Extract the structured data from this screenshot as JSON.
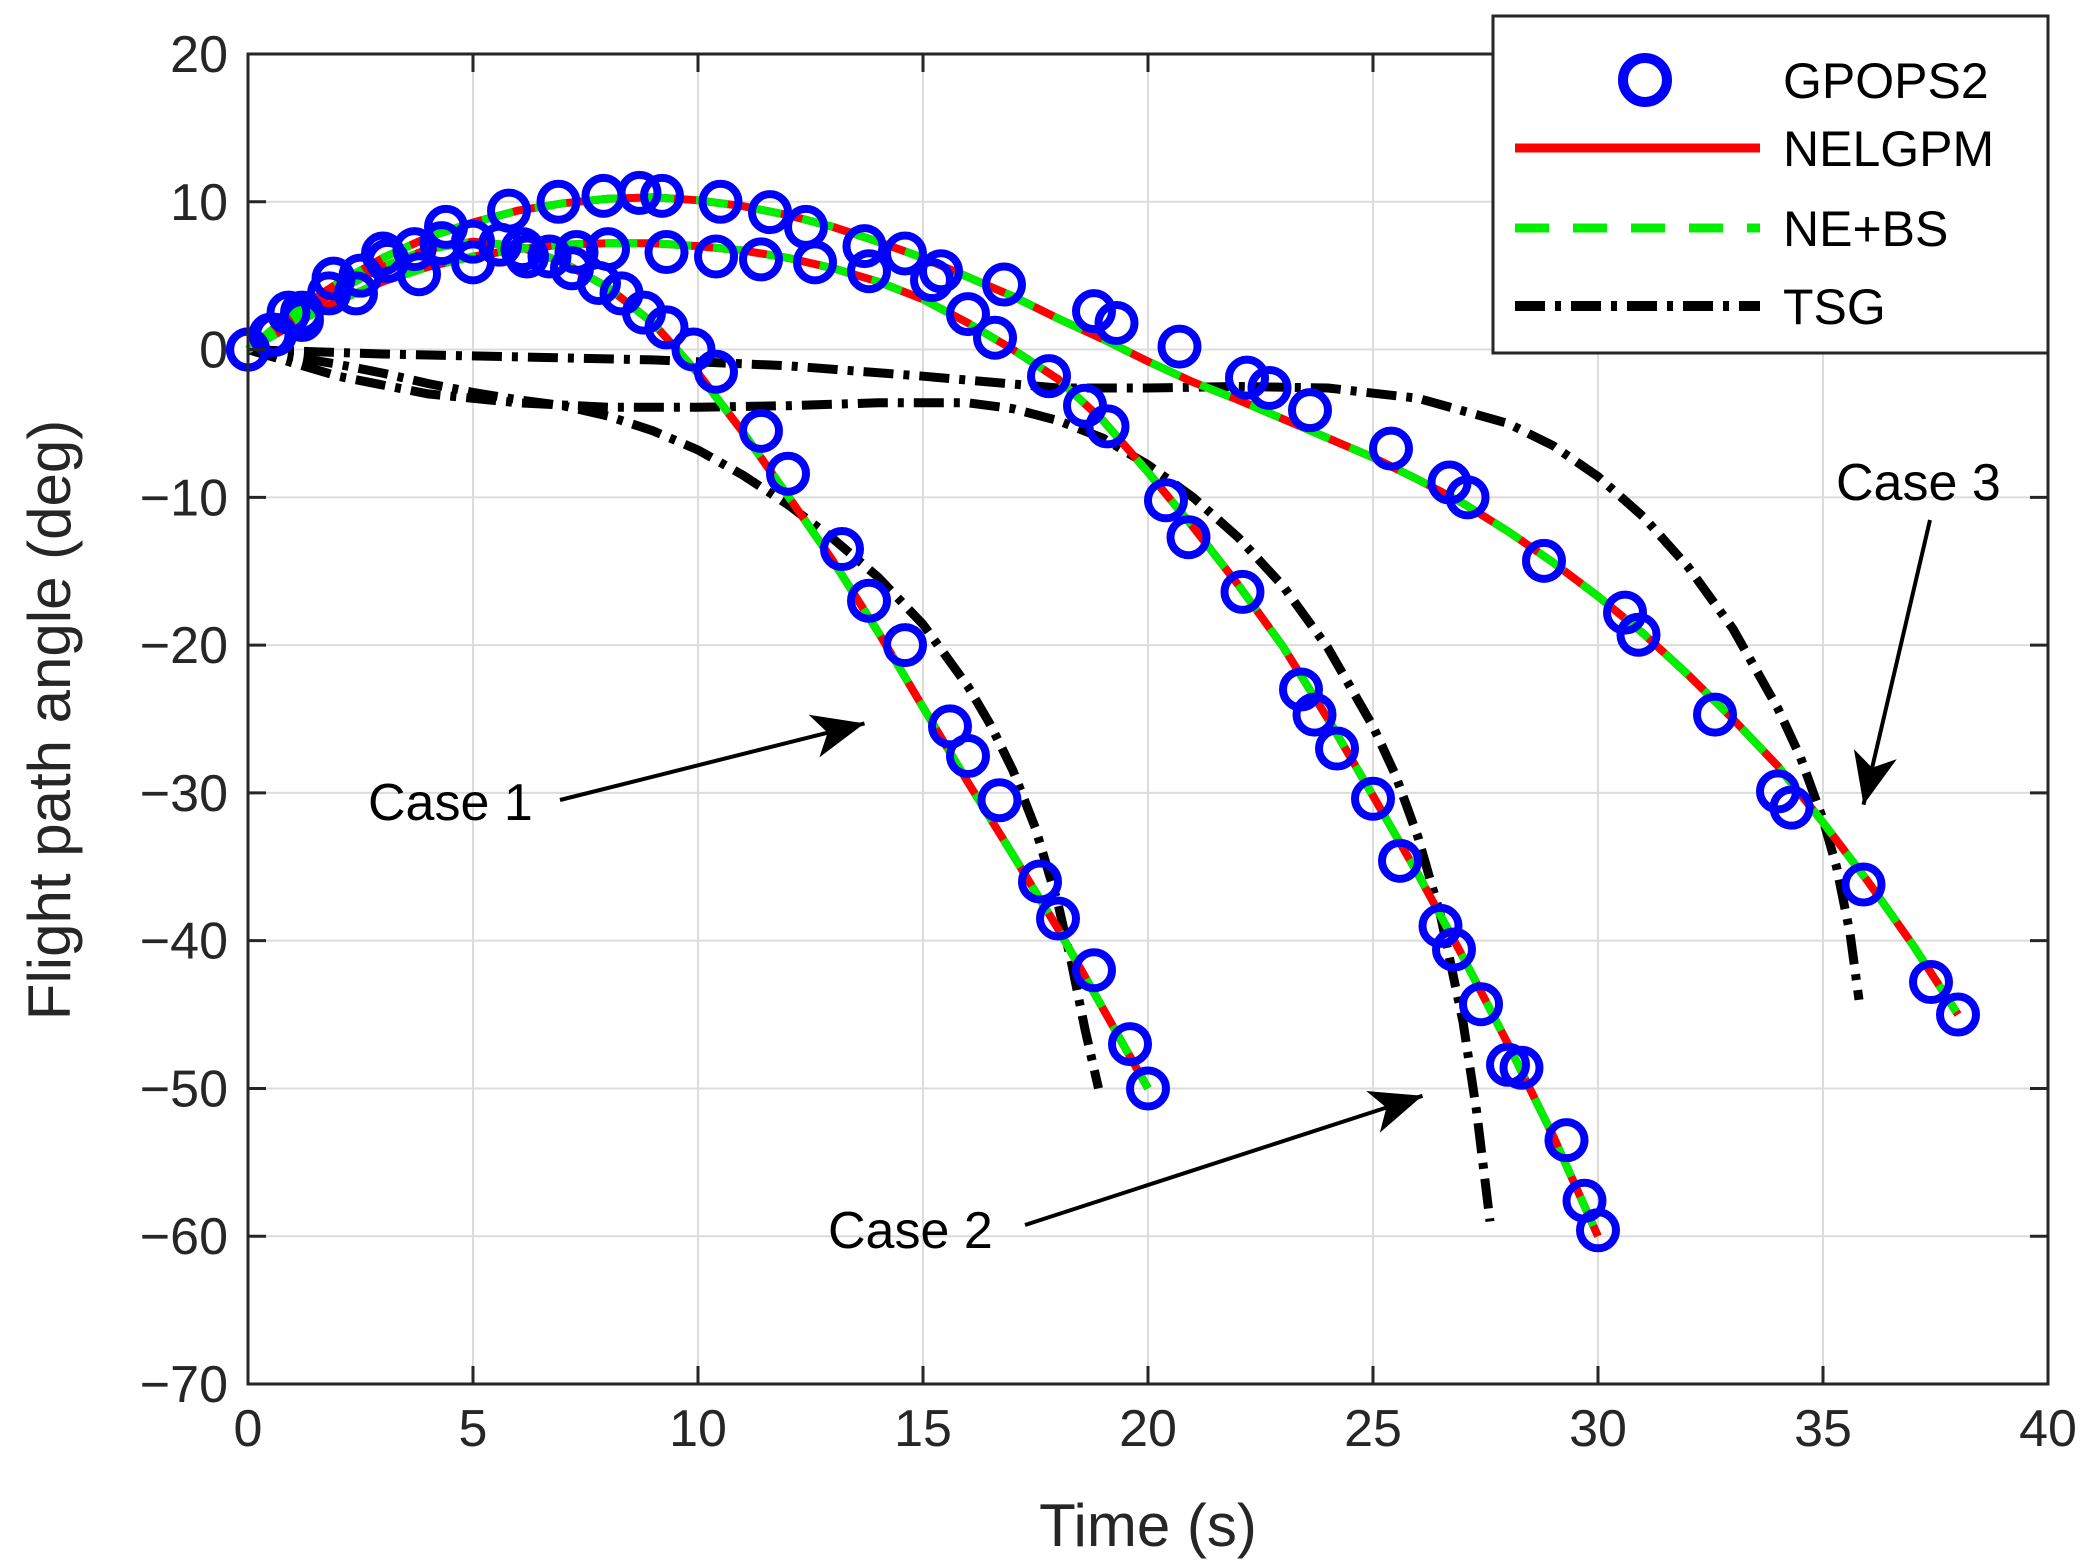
{
  "chart_data": {
    "type": "line",
    "title": "",
    "xlabel": "Time (s)",
    "ylabel": "Flight path angle (deg)",
    "xlim": [
      0,
      40
    ],
    "ylim": [
      -70,
      20
    ],
    "xticks": [
      0,
      5,
      10,
      15,
      20,
      25,
      30,
      35,
      40
    ],
    "yticks": [
      20,
      10,
      0,
      -10,
      -20,
      -30,
      -40,
      -50,
      -60,
      -70
    ],
    "grid": true,
    "legend_position": "top-right",
    "legend": [
      {
        "name": "GPOPS2",
        "color": "#0000ff",
        "style": "circle-markers"
      },
      {
        "name": "NELGPM",
        "color": "#ff0000",
        "style": "solid"
      },
      {
        "name": "NE+BS",
        "color": "#00ee00",
        "style": "dashed"
      },
      {
        "name": "TSG",
        "color": "#000000",
        "style": "dash-dot"
      }
    ],
    "annotations": [
      {
        "text": "Case 1",
        "target": [
          13.7,
          -25.3
        ]
      },
      {
        "text": "Case 2",
        "target": [
          26.1,
          -50.5
        ]
      },
      {
        "text": "Case 3",
        "target": [
          35.9,
          -30.8
        ]
      }
    ],
    "series": [
      {
        "case": "Case 1",
        "nelgpm": {
          "x": [
            0,
            1,
            2,
            3,
            4,
            5,
            6,
            7,
            8,
            9,
            10,
            11,
            12,
            13,
            14,
            15,
            16,
            17,
            18,
            19,
            20
          ],
          "y": [
            0,
            2.1,
            4.0,
            5.6,
            6.8,
            7.3,
            7.0,
            5.9,
            4.2,
            1.8,
            -1.6,
            -5.6,
            -9.9,
            -14.3,
            -19.1,
            -24.2,
            -29.3,
            -34.2,
            -39.2,
            -44.6,
            -50
          ]
        },
        "gpops2": {
          "x": [
            0,
            0.5,
            1.2,
            1.8,
            2.5,
            3.1,
            3.7,
            4.3,
            5.0,
            5.6,
            6.1,
            6.7,
            7.2,
            7.8,
            8.3,
            8.8,
            9.3,
            9.9,
            10.4,
            11.4,
            12.0,
            13.2,
            13.8,
            14.6,
            15.6,
            16.0,
            16.7,
            17.6,
            18.0,
            18.8,
            19.6,
            20.0
          ],
          "y": [
            0,
            1.0,
            2.5,
            3.8,
            5.0,
            6.0,
            6.8,
            7.2,
            7.3,
            7.1,
            6.8,
            6.3,
            5.5,
            4.5,
            3.8,
            2.5,
            1.5,
            0.0,
            -1.5,
            -5.5,
            -8.4,
            -13.5,
            -17.0,
            -20.0,
            -25.5,
            -27.5,
            -30.5,
            -36.0,
            -38.5,
            -42.0,
            -47.0,
            -50.0
          ]
        },
        "tsg": {
          "x": [
            0,
            1,
            2,
            3,
            4,
            5,
            6,
            7,
            8,
            9,
            10,
            11,
            12,
            13,
            14,
            15,
            16,
            16.5,
            17,
            17.5,
            18,
            18.3,
            18.6,
            18.9
          ],
          "y": [
            0,
            -0.5,
            -1.0,
            -1.6,
            -2.3,
            -2.9,
            -3.4,
            -3.8,
            -4.5,
            -5.5,
            -6.8,
            -8.5,
            -10.5,
            -12.8,
            -15.4,
            -18.6,
            -22.8,
            -25.4,
            -28.5,
            -32.4,
            -37.5,
            -41.5,
            -46.0,
            -50.0
          ]
        }
      },
      {
        "case": "Case 2",
        "nelgpm": {
          "x": [
            0,
            1,
            2,
            3,
            4,
            5,
            6,
            7,
            8,
            9,
            10,
            11,
            12,
            13,
            14,
            15,
            16,
            17,
            18,
            19,
            20,
            21,
            22,
            23,
            24,
            25,
            26,
            27,
            28,
            29,
            30
          ],
          "y": [
            0,
            1.7,
            3.3,
            4.6,
            5.6,
            6.3,
            6.8,
            7.1,
            7.2,
            7.2,
            7.0,
            6.7,
            6.2,
            5.5,
            4.6,
            3.4,
            1.8,
            0.0,
            -2.0,
            -4.8,
            -8.3,
            -12.0,
            -15.9,
            -20.1,
            -25.0,
            -30.2,
            -35.5,
            -41.1,
            -47.0,
            -53.2,
            -60.0
          ]
        },
        "gpops2": {
          "x": [
            0,
            0.6,
            1.2,
            2.4,
            3.8,
            5.0,
            6.2,
            7.3,
            8.0,
            9.3,
            10.4,
            11.4,
            12.6,
            13.8,
            15.2,
            16.0,
            16.6,
            17.8,
            18.6,
            19.1,
            20.4,
            20.9,
            22.1,
            23.4,
            23.7,
            24.2,
            25.0,
            25.6,
            26.5,
            26.8,
            27.4,
            28.0,
            28.3,
            29.3,
            29.7,
            30.0
          ],
          "y": [
            0,
            1.0,
            2.0,
            3.8,
            5.1,
            5.9,
            6.3,
            6.6,
            6.8,
            6.6,
            6.3,
            6.1,
            5.9,
            5.3,
            4.7,
            2.4,
            0.8,
            -1.8,
            -3.8,
            -5.2,
            -10.2,
            -12.7,
            -16.4,
            -23.0,
            -24.7,
            -27.0,
            -30.4,
            -34.6,
            -39.0,
            -40.6,
            -44.3,
            -48.4,
            -48.6,
            -53.5,
            -57.6,
            -59.6
          ]
        },
        "tsg": {
          "x": [
            0,
            2,
            4,
            6,
            8,
            10,
            12,
            14,
            16,
            17,
            18,
            19,
            20,
            21,
            22,
            23,
            24,
            25,
            25.5,
            26,
            26.5,
            27,
            27.3,
            27.6
          ],
          "y": [
            0,
            -1.8,
            -3.0,
            -3.6,
            -3.9,
            -3.9,
            -3.8,
            -3.6,
            -3.6,
            -4.0,
            -4.8,
            -6.0,
            -7.8,
            -10.0,
            -12.7,
            -16.0,
            -20.2,
            -25.5,
            -28.8,
            -33.0,
            -38.3,
            -45.5,
            -51.5,
            -59.0
          ]
        }
      },
      {
        "case": "Case 3",
        "nelgpm": {
          "x": [
            0,
            1,
            2,
            3,
            4,
            5,
            6,
            7,
            8,
            9,
            10,
            11,
            12,
            13,
            14,
            15,
            16,
            17,
            18,
            19,
            20,
            21,
            22,
            23,
            24,
            25,
            26,
            27,
            28,
            29,
            30,
            31,
            32,
            33,
            34,
            35,
            36,
            37,
            38
          ],
          "y": [
            0,
            2.5,
            4.5,
            6.2,
            7.6,
            8.6,
            9.4,
            9.9,
            10.2,
            10.3,
            10.1,
            9.7,
            9.1,
            8.3,
            7.3,
            6.2,
            4.9,
            3.6,
            2.1,
            0.7,
            -0.8,
            -2.2,
            -3.4,
            -4.7,
            -6.0,
            -7.3,
            -8.8,
            -10.4,
            -12.3,
            -14.4,
            -16.7,
            -19.2,
            -22.0,
            -25.0,
            -28.2,
            -32.0,
            -36.0,
            -40.3,
            -45.0
          ]
        },
        "gpops2": {
          "x": [
            0,
            0.9,
            1.9,
            3.0,
            4.4,
            5.8,
            6.9,
            7.9,
            8.7,
            9.2,
            10.5,
            11.6,
            12.4,
            13.7,
            14.6,
            15.4,
            16.8,
            18.8,
            19.3,
            20.7,
            22.2,
            22.7,
            23.6,
            25.4,
            26.7,
            27.1,
            28.8,
            30.6,
            30.9,
            32.6,
            34.0,
            34.3,
            35.9,
            37.4,
            38.0
          ],
          "y": [
            0,
            2.5,
            4.8,
            6.5,
            8.3,
            9.4,
            10.0,
            10.4,
            10.6,
            10.4,
            10.0,
            9.3,
            8.3,
            7.0,
            6.5,
            5.3,
            4.4,
            2.6,
            1.8,
            0.2,
            -1.9,
            -2.6,
            -4.1,
            -6.7,
            -9.0,
            -10.0,
            -14.3,
            -17.8,
            -19.3,
            -24.7,
            -29.9,
            -31.0,
            -36.2,
            -42.8,
            -45.0
          ]
        },
        "tsg": {
          "x": [
            0,
            3,
            6,
            9,
            12,
            15,
            18,
            20,
            22,
            24,
            26,
            28,
            29,
            30,
            31,
            32,
            33,
            34,
            34.5,
            35,
            35.3,
            35.6,
            35.8
          ],
          "y": [
            0,
            -0.3,
            -0.5,
            -0.7,
            -1.1,
            -1.8,
            -2.6,
            -2.6,
            -2.5,
            -2.6,
            -3.3,
            -5.0,
            -6.5,
            -8.6,
            -11.3,
            -14.7,
            -18.9,
            -24.3,
            -27.6,
            -31.8,
            -35.0,
            -39.5,
            -44.0
          ]
        }
      }
    ]
  }
}
